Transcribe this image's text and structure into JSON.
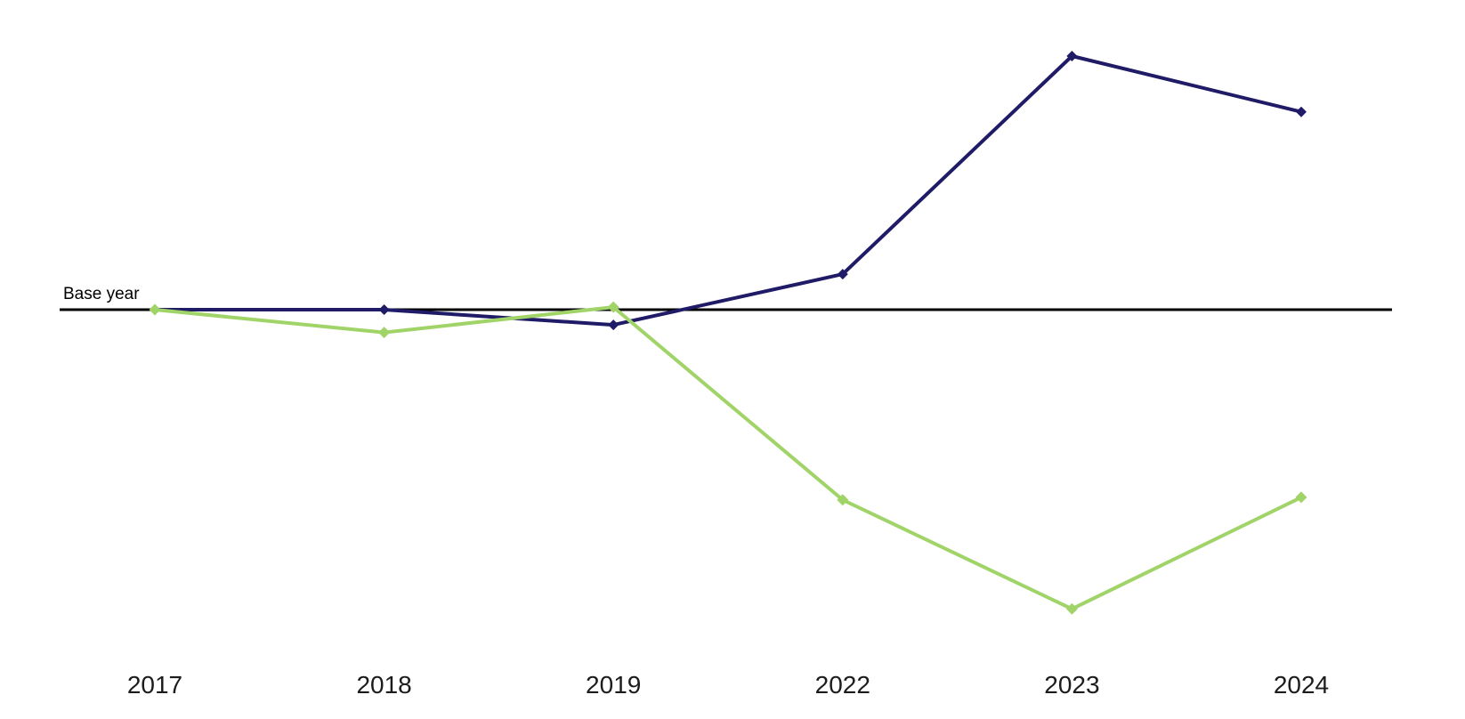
{
  "page": {
    "background_color": "#ffffff"
  },
  "chart_data": {
    "type": "line",
    "title": "",
    "xlabel": "",
    "ylabel": "",
    "categories": [
      "2017",
      "2018",
      "2019",
      "2022",
      "2023",
      "2024"
    ],
    "series": [
      {
        "name": "navy",
        "color": "#1F1B66",
        "marker": "diamond",
        "values": [
          100,
          100,
          94,
          114,
          200,
          178
        ]
      },
      {
        "name": "green",
        "color": "#A1D468",
        "marker": "diamond",
        "values": [
          100,
          91,
          101,
          25,
          -18,
          26
        ]
      }
    ],
    "baseline": {
      "label": "Base year",
      "value": 100,
      "color": "#000000"
    },
    "ylim": [
      -60,
      220
    ],
    "grid": false,
    "legend": "none",
    "tick_label_color": "#1c1c1c"
  }
}
